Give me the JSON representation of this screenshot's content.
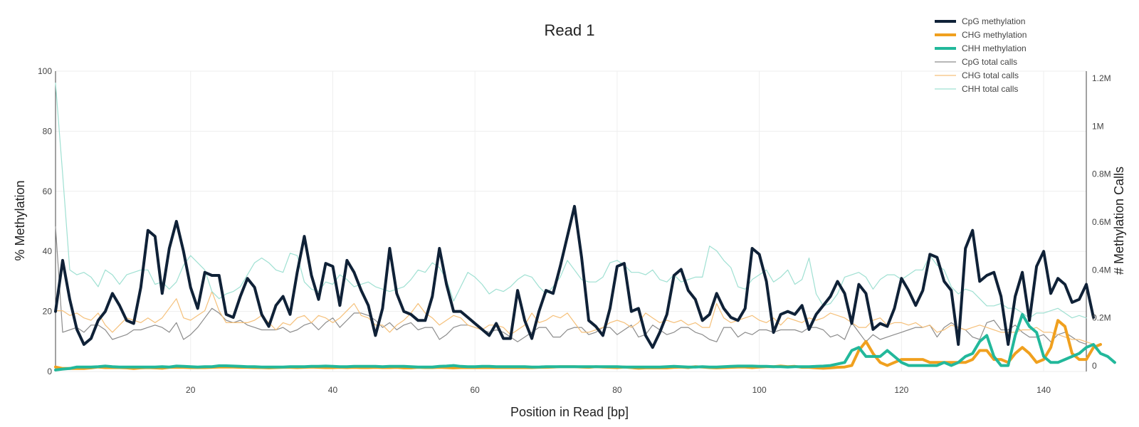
{
  "chart_data": {
    "type": "line",
    "title": "Read 1",
    "xlabel": "Position in Read [bp]",
    "ylabel": "% Methylation",
    "y2label": "# Methylation Calls",
    "xlim": [
      1,
      146
    ],
    "ylim": [
      0,
      100
    ],
    "y2lim": [
      0,
      1200000
    ],
    "x_ticks": [
      "20",
      "40",
      "60",
      "80",
      "100",
      "120",
      "140"
    ],
    "y_ticks": [
      "0",
      "20",
      "40",
      "60",
      "80",
      "100"
    ],
    "y2_ticks": [
      "0",
      "0.2M",
      "0.4M",
      "0.6M",
      "0.8M",
      "1M",
      "1.2M"
    ],
    "legend_position": "top-right",
    "grid": true,
    "series": [
      {
        "name": "CpG methylation",
        "axis": "y",
        "color": "#0f2137",
        "style": "thick",
        "values": [
          20,
          37,
          24,
          14,
          9,
          11,
          17,
          20,
          26,
          22,
          17,
          16,
          28,
          47,
          45,
          26,
          41,
          50,
          40,
          28,
          21,
          33,
          32,
          32,
          19,
          18,
          25,
          31,
          28,
          19,
          15,
          22,
          25,
          19,
          33,
          45,
          32,
          24,
          36,
          35,
          22,
          37,
          33,
          27,
          22,
          12,
          21,
          41,
          26,
          20,
          19,
          17,
          17,
          25,
          41,
          29,
          20,
          20,
          18,
          16,
          14,
          12,
          16,
          11,
          11,
          27,
          17,
          11,
          20,
          27,
          26,
          35,
          45,
          55,
          38,
          17,
          15,
          12,
          21,
          35,
          36,
          20,
          21,
          12,
          8,
          13,
          19,
          32,
          34,
          27,
          24,
          17,
          19,
          26,
          21,
          18,
          17,
          21,
          41,
          39,
          30,
          13,
          19,
          20,
          19,
          22,
          14,
          19,
          22,
          25,
          30,
          26,
          16,
          29,
          26,
          14,
          16,
          15,
          21,
          31,
          27,
          22,
          27,
          39,
          38,
          30,
          27,
          9,
          41,
          47,
          30,
          32,
          33,
          25,
          9,
          25,
          33,
          17,
          35,
          40,
          26,
          31,
          29,
          23,
          24,
          29,
          18
        ]
      },
      {
        "name": "CHG methylation",
        "axis": "y",
        "color": "#f0a01e",
        "style": "thick",
        "values": [
          1.5,
          1,
          1,
          1,
          1,
          1.2,
          1.5,
          1.3,
          1.3,
          1.3,
          1.2,
          1,
          1.2,
          1.3,
          1.2,
          1.1,
          1.4,
          1.4,
          1.4,
          1.3,
          1.3,
          1.3,
          1.4,
          1.5,
          1.5,
          1.5,
          1.4,
          1.4,
          1.3,
          1.3,
          1.2,
          1.3,
          1.4,
          1.4,
          1.3,
          1.4,
          1.5,
          1.4,
          1.3,
          1.3,
          1.4,
          1.3,
          1.4,
          1.3,
          1.3,
          1.4,
          1.3,
          1.3,
          1.4,
          1.2,
          1.2,
          1.4,
          1.3,
          1.3,
          1.4,
          1.3,
          1.2,
          1.3,
          1.3,
          1.3,
          1.3,
          1.3,
          1.3,
          1.3,
          1.3,
          1.3,
          1.3,
          1.3,
          1.4,
          1.4,
          1.5,
          1.6,
          1.6,
          1.6,
          1.5,
          1.4,
          1.6,
          1.5,
          1.4,
          1.3,
          1.5,
          1.3,
          1.1,
          1.2,
          1.2,
          1.2,
          1.2,
          1.4,
          1.5,
          1.3,
          1.6,
          1.5,
          1.3,
          1.2,
          1.3,
          1.4,
          1.5,
          1.5,
          1.3,
          1.5,
          1.6,
          1.6,
          1.8,
          1.6,
          1.7,
          1.4,
          1.4,
          1.2,
          1.1,
          1.2,
          1.4,
          1.5,
          2,
          7,
          10,
          6,
          3,
          2,
          3,
          4,
          4,
          4,
          4,
          3,
          3,
          3,
          3,
          3,
          3,
          4,
          7,
          7,
          4,
          4,
          3,
          6,
          8,
          6,
          3,
          4,
          8,
          17,
          15,
          6,
          4,
          4,
          8,
          9
        ]
      },
      {
        "name": "CHH methylation",
        "axis": "y",
        "color": "#22b89b",
        "style": "thick",
        "values": [
          0.5,
          0.8,
          1,
          1.5,
          1.5,
          1.5,
          1.6,
          1.8,
          1.6,
          1.5,
          1.5,
          1.5,
          1.5,
          1.5,
          1.5,
          1.6,
          1.5,
          1.8,
          1.7,
          1.6,
          1.5,
          1.6,
          1.6,
          1.9,
          1.9,
          1.8,
          1.7,
          1.6,
          1.6,
          1.5,
          1.5,
          1.5,
          1.5,
          1.6,
          1.6,
          1.6,
          1.7,
          1.7,
          1.8,
          1.7,
          1.6,
          1.6,
          1.7,
          1.7,
          1.7,
          1.7,
          1.6,
          1.7,
          1.7,
          1.7,
          1.6,
          1.5,
          1.5,
          1.5,
          1.7,
          1.8,
          2,
          1.7,
          1.6,
          1.6,
          1.7,
          1.7,
          1.6,
          1.6,
          1.6,
          1.6,
          1.6,
          1.5,
          1.5,
          1.6,
          1.6,
          1.6,
          1.6,
          1.6,
          1.6,
          1.6,
          1.6,
          1.6,
          1.6,
          1.6,
          1.5,
          1.5,
          1.5,
          1.5,
          1.5,
          1.5,
          1.6,
          1.7,
          1.6,
          1.5,
          1.5,
          1.6,
          1.5,
          1.5,
          1.6,
          1.7,
          1.8,
          1.8,
          1.8,
          1.7,
          1.7,
          1.6,
          1.6,
          1.5,
          1.6,
          1.6,
          1.6,
          1.7,
          1.8,
          2,
          2.5,
          3,
          7,
          8,
          5,
          5,
          5,
          7,
          5,
          3,
          2,
          2,
          2,
          2,
          2,
          3,
          2,
          3,
          5,
          6,
          10,
          12,
          5,
          2,
          2,
          12,
          19,
          15,
          13,
          5,
          3,
          3,
          4,
          5,
          6,
          8,
          9,
          6,
          5,
          3
        ]
      },
      {
        "name": "CpG total calls",
        "axis": "y2",
        "color": "#8c8c8c",
        "style": "thin",
        "values": [
          580000,
          140000,
          150000,
          160000,
          140000,
          170000,
          170000,
          150000,
          110000,
          120000,
          130000,
          150000,
          150000,
          160000,
          170000,
          160000,
          140000,
          180000,
          110000,
          130000,
          160000,
          200000,
          240000,
          220000,
          190000,
          180000,
          190000,
          170000,
          160000,
          150000,
          150000,
          150000,
          160000,
          140000,
          150000,
          170000,
          180000,
          150000,
          180000,
          200000,
          160000,
          190000,
          220000,
          220000,
          210000,
          190000,
          160000,
          180000,
          150000,
          170000,
          180000,
          150000,
          160000,
          160000,
          110000,
          130000,
          160000,
          170000,
          170000,
          160000,
          150000,
          140000,
          150000,
          140000,
          120000,
          100000,
          120000,
          140000,
          160000,
          160000,
          120000,
          120000,
          150000,
          160000,
          160000,
          130000,
          140000,
          160000,
          160000,
          130000,
          150000,
          170000,
          120000,
          130000,
          170000,
          150000,
          130000,
          140000,
          160000,
          160000,
          140000,
          130000,
          110000,
          100000,
          160000,
          160000,
          120000,
          140000,
          130000,
          150000,
          150000,
          140000,
          150000,
          150000,
          150000,
          140000,
          160000,
          160000,
          150000,
          120000,
          130000,
          110000,
          180000,
          140000,
          100000,
          130000,
          110000,
          120000,
          130000,
          140000,
          150000,
          160000,
          160000,
          170000,
          120000,
          160000,
          180000,
          160000,
          150000,
          120000,
          110000,
          180000,
          190000,
          150000,
          150000,
          170000,
          140000,
          120000,
          120000,
          130000,
          100000,
          130000,
          140000,
          120000,
          100000,
          90000
        ]
      },
      {
        "name": "CHG total calls",
        "axis": "y2",
        "color": "#f5c07a",
        "style": "thin",
        "values": [
          230000,
          230000,
          210000,
          220000,
          200000,
          190000,
          220000,
          170000,
          140000,
          170000,
          200000,
          190000,
          180000,
          200000,
          180000,
          200000,
          240000,
          280000,
          200000,
          190000,
          210000,
          230000,
          310000,
          230000,
          180000,
          180000,
          180000,
          180000,
          190000,
          210000,
          180000,
          150000,
          180000,
          170000,
          200000,
          210000,
          180000,
          210000,
          200000,
          180000,
          200000,
          230000,
          260000,
          210000,
          200000,
          170000,
          170000,
          140000,
          170000,
          190000,
          220000,
          260000,
          220000,
          200000,
          170000,
          190000,
          210000,
          200000,
          170000,
          160000,
          150000,
          170000,
          170000,
          160000,
          130000,
          150000,
          170000,
          220000,
          180000,
          190000,
          210000,
          200000,
          220000,
          180000,
          140000,
          140000,
          150000,
          160000,
          180000,
          190000,
          180000,
          160000,
          180000,
          220000,
          200000,
          180000,
          190000,
          180000,
          190000,
          170000,
          180000,
          160000,
          160000,
          260000,
          200000,
          180000,
          190000,
          200000,
          210000,
          190000,
          180000,
          200000,
          170000,
          200000,
          190000,
          180000,
          200000,
          190000,
          200000,
          220000,
          210000,
          200000,
          180000,
          160000,
          160000,
          190000,
          200000,
          170000,
          180000,
          180000,
          170000,
          180000,
          160000,
          170000,
          140000,
          150000,
          170000,
          160000,
          150000,
          160000,
          170000,
          160000,
          150000,
          140000,
          140000,
          140000,
          150000,
          150000,
          160000,
          140000,
          140000,
          130000,
          120000,
          110000,
          110000,
          100000,
          90000
        ]
      },
      {
        "name": "CHH total calls",
        "axis": "y2",
        "color": "#9fe0d2",
        "style": "thin",
        "values": [
          1180000,
          800000,
          400000,
          380000,
          390000,
          370000,
          330000,
          400000,
          380000,
          340000,
          380000,
          390000,
          400000,
          400000,
          340000,
          350000,
          320000,
          350000,
          420000,
          460000,
          430000,
          400000,
          310000,
          280000,
          300000,
          310000,
          330000,
          380000,
          430000,
          450000,
          430000,
          400000,
          390000,
          470000,
          460000,
          350000,
          320000,
          310000,
          350000,
          340000,
          380000,
          360000,
          330000,
          340000,
          350000,
          330000,
          320000,
          310000,
          320000,
          330000,
          360000,
          400000,
          390000,
          430000,
          410000,
          360000,
          270000,
          330000,
          390000,
          370000,
          340000,
          300000,
          320000,
          310000,
          330000,
          360000,
          380000,
          370000,
          330000,
          300000,
          330000,
          370000,
          440000,
          400000,
          360000,
          350000,
          350000,
          370000,
          430000,
          440000,
          420000,
          390000,
          390000,
          380000,
          400000,
          360000,
          350000,
          380000,
          350000,
          360000,
          370000,
          370000,
          500000,
          480000,
          440000,
          410000,
          330000,
          320000,
          360000,
          380000,
          400000,
          350000,
          370000,
          400000,
          340000,
          360000,
          450000,
          300000,
          250000,
          260000,
          300000,
          370000,
          380000,
          390000,
          370000,
          320000,
          360000,
          380000,
          380000,
          360000,
          380000,
          400000,
          400000,
          460000,
          420000,
          400000,
          330000,
          300000,
          320000,
          310000,
          280000,
          250000,
          250000,
          260000,
          240000,
          240000,
          220000,
          200000,
          220000,
          220000,
          230000,
          240000,
          220000,
          200000,
          210000,
          200000
        ]
      }
    ]
  }
}
